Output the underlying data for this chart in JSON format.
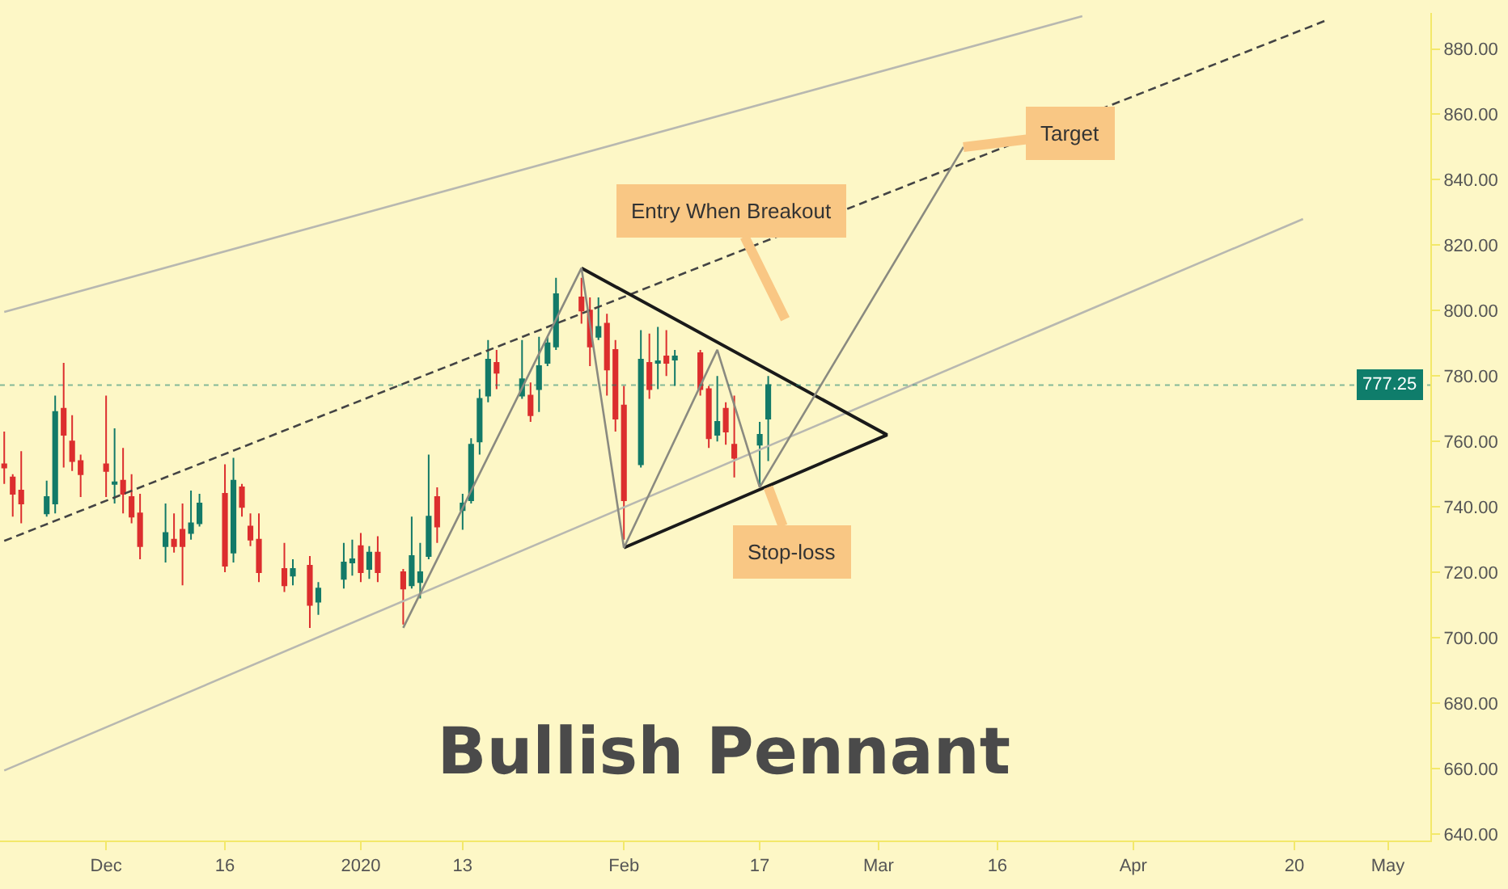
{
  "chart_data": {
    "type": "candlestick",
    "title": "Bullish Pennant",
    "x": [
      "2019-11-20",
      "2019-11-21",
      "2019-11-22",
      "2019-11-25",
      "2019-11-26",
      "2019-11-27",
      "2019-11-28",
      "2019-11-29",
      "2019-12-02",
      "2019-12-03",
      "2019-12-04",
      "2019-12-05",
      "2019-12-06",
      "2019-12-09",
      "2019-12-10",
      "2019-12-11",
      "2019-12-12",
      "2019-12-13",
      "2019-12-16",
      "2019-12-17",
      "2019-12-18",
      "2019-12-19",
      "2019-12-20",
      "2019-12-23",
      "2019-12-24",
      "2019-12-26",
      "2019-12-27",
      "2019-12-30",
      "2019-12-31",
      "2020-01-01",
      "2020-01-02",
      "2020-01-03",
      "2020-01-06",
      "2020-01-07",
      "2020-01-08",
      "2020-01-09",
      "2020-01-10",
      "2020-01-13",
      "2020-01-14",
      "2020-01-15",
      "2020-01-16",
      "2020-01-17",
      "2020-01-20",
      "2020-01-21",
      "2020-01-22",
      "2020-01-23",
      "2020-01-24",
      "2020-01-27",
      "2020-01-28",
      "2020-01-29",
      "2020-01-30",
      "2020-01-31",
      "2020-02-01",
      "2020-02-03",
      "2020-02-04",
      "2020-02-05",
      "2020-02-06",
      "2020-02-07",
      "2020-02-10",
      "2020-02-11",
      "2020-02-12",
      "2020-02-13",
      "2020-02-14",
      "2020-02-17",
      "2020-02-18"
    ],
    "ohlc": [
      [
        753,
        763,
        747,
        752
      ],
      [
        749,
        750,
        737,
        744
      ],
      [
        745,
        757,
        735,
        741
      ],
      [
        738,
        748,
        737,
        743
      ],
      [
        741,
        774,
        738,
        769
      ],
      [
        770,
        784,
        752,
        762
      ],
      [
        760,
        768,
        751,
        754
      ],
      [
        754,
        756,
        743,
        750
      ],
      [
        753,
        774,
        743,
        751
      ],
      [
        747,
        764,
        741,
        747.5
      ],
      [
        748,
        758,
        738,
        744
      ],
      [
        743,
        750,
        735,
        737
      ],
      [
        738,
        744,
        724,
        728
      ],
      [
        728,
        741,
        723,
        732
      ],
      [
        730,
        738,
        726,
        728
      ],
      [
        733,
        741,
        716,
        728
      ],
      [
        732,
        745,
        730,
        735
      ],
      [
        735,
        744,
        734,
        741
      ],
      [
        744,
        753,
        720,
        722
      ],
      [
        726,
        755,
        723,
        748
      ],
      [
        746,
        747,
        737,
        740
      ],
      [
        734,
        738,
        728,
        730
      ],
      [
        730,
        738,
        717,
        720
      ],
      [
        721,
        729,
        714,
        716
      ],
      [
        719,
        724,
        716,
        721
      ],
      [
        722,
        725,
        703,
        710
      ],
      [
        711,
        717,
        707,
        715
      ],
      [
        718,
        729,
        715,
        723
      ],
      [
        723,
        730,
        719,
        724
      ],
      [
        728,
        732,
        717,
        720
      ],
      [
        721,
        728,
        718,
        726
      ],
      [
        726,
        731,
        717,
        720
      ],
      [
        720,
        721,
        704,
        715
      ],
      [
        716,
        737,
        715,
        725
      ],
      [
        717,
        729,
        712,
        720
      ],
      [
        725,
        756,
        724,
        737
      ],
      [
        743,
        746,
        729,
        734
      ],
      [
        739,
        744,
        733,
        741
      ],
      [
        742,
        761,
        741,
        759
      ],
      [
        760,
        776,
        756,
        773
      ],
      [
        774,
        791,
        772,
        785
      ],
      [
        784,
        788,
        776,
        781
      ],
      [
        774,
        791,
        773,
        779
      ],
      [
        774,
        778,
        766,
        768
      ],
      [
        776,
        792,
        769,
        783
      ],
      [
        784,
        792,
        783,
        790
      ],
      [
        789,
        810,
        788,
        805
      ],
      [
        804,
        810,
        796,
        800
      ],
      [
        800,
        804,
        783,
        789
      ],
      [
        792,
        804,
        791,
        795
      ],
      [
        796,
        799,
        774,
        782
      ],
      [
        788,
        791,
        763,
        767
      ],
      [
        771,
        777,
        730,
        742
      ],
      [
        753,
        794,
        752,
        785
      ],
      [
        784,
        793,
        773,
        776
      ],
      [
        784,
        795,
        776,
        784.5
      ],
      [
        786,
        794,
        780,
        784
      ],
      [
        785,
        788,
        777,
        786
      ],
      [
        787,
        788,
        774,
        776
      ],
      [
        776,
        777,
        758,
        761
      ],
      [
        762,
        780,
        760,
        766
      ],
      [
        770,
        772,
        759,
        763
      ],
      [
        759,
        774,
        749,
        755
      ],
      [
        759,
        766,
        746,
        762
      ],
      [
        767,
        780,
        754,
        777.25
      ]
    ],
    "series": [
      {
        "type": "line",
        "color": "#b8b8b0",
        "line_style": "solid",
        "x": [
          "2019-11-20",
          "2020-03-26"
        ],
        "values": [
          799.6,
          890
        ]
      },
      {
        "type": "line",
        "color": "#444444",
        "line_style": "dashed",
        "x": [
          "2019-11-20",
          "2020-04-24"
        ],
        "values": [
          729.6,
          889
        ]
      },
      {
        "type": "line",
        "color": "#b8b8b0",
        "line_style": "solid",
        "x": [
          "2019-11-20",
          "2020-04-21"
        ],
        "values": [
          659.4,
          828
        ]
      },
      {
        "type": "line",
        "color": "#1a1a1a",
        "line_style": "solid",
        "x": [
          "2020-01-27",
          "2020-03-03",
          "2020-02-01"
        ],
        "values": [
          813,
          762,
          727.5
        ]
      },
      {
        "type": "line",
        "color": "#8a8a80",
        "line_style": "solid",
        "x": [
          "2020-01-06",
          "2020-01-27",
          "2020-02-01",
          "2020-02-12",
          "2020-02-17",
          "2020-03-12"
        ],
        "values": [
          703,
          813,
          727.5,
          788,
          746,
          850
        ]
      }
    ],
    "annotations": [
      "Entry When Breakout",
      {
        "text": "Target",
        "x": "2020-03-12",
        "y": 850
      },
      {
        "text": "Stop-loss",
        "x": "2020-02-18",
        "y": 746
      }
    ],
    "ref_lines": [
      {
        "axis": "y",
        "value": 777.25,
        "label": "777.25",
        "color": "#0f7d6b",
        "line_style": "dotted"
      }
    ],
    "xlim": [
      "2019-11-19T12:00",
      "2020-05-06"
    ],
    "xticks": [
      {
        "value": "2019-12-02",
        "label": "Dec"
      },
      {
        "value": "2019-12-16",
        "label": "16"
      },
      {
        "value": "2020-01-01",
        "label": "2020"
      },
      {
        "value": "2020-01-13",
        "label": "13"
      },
      {
        "value": "2020-02-01",
        "label": "Feb"
      },
      {
        "value": "2020-02-17",
        "label": "17"
      },
      {
        "value": "2020-03-02",
        "label": "Mar"
      },
      {
        "value": "2020-03-16",
        "label": "16"
      },
      {
        "value": "2020-04-01",
        "label": "Apr"
      },
      {
        "value": "2020-04-20",
        "label": "20"
      },
      {
        "value": "2020-05-01",
        "label": "May"
      }
    ],
    "ylim": [
      638,
      891
    ],
    "yticks": [
      {
        "value": 640,
        "label": "640.00"
      },
      {
        "value": 660,
        "label": "660.00"
      },
      {
        "value": 680,
        "label": "680.00"
      },
      {
        "value": 700,
        "label": "700.00"
      },
      {
        "value": 720,
        "label": "720.00"
      },
      {
        "value": 740,
        "label": "740.00"
      },
      {
        "value": 760,
        "label": "760.00"
      },
      {
        "value": 780,
        "label": "780.00"
      },
      {
        "value": 800,
        "label": "800.00"
      },
      {
        "value": 820,
        "label": "820.00"
      },
      {
        "value": 840,
        "label": "840.00"
      },
      {
        "value": 860,
        "label": "860.00"
      },
      {
        "value": 880,
        "label": "880.00"
      }
    ],
    "grid": false
  }
}
